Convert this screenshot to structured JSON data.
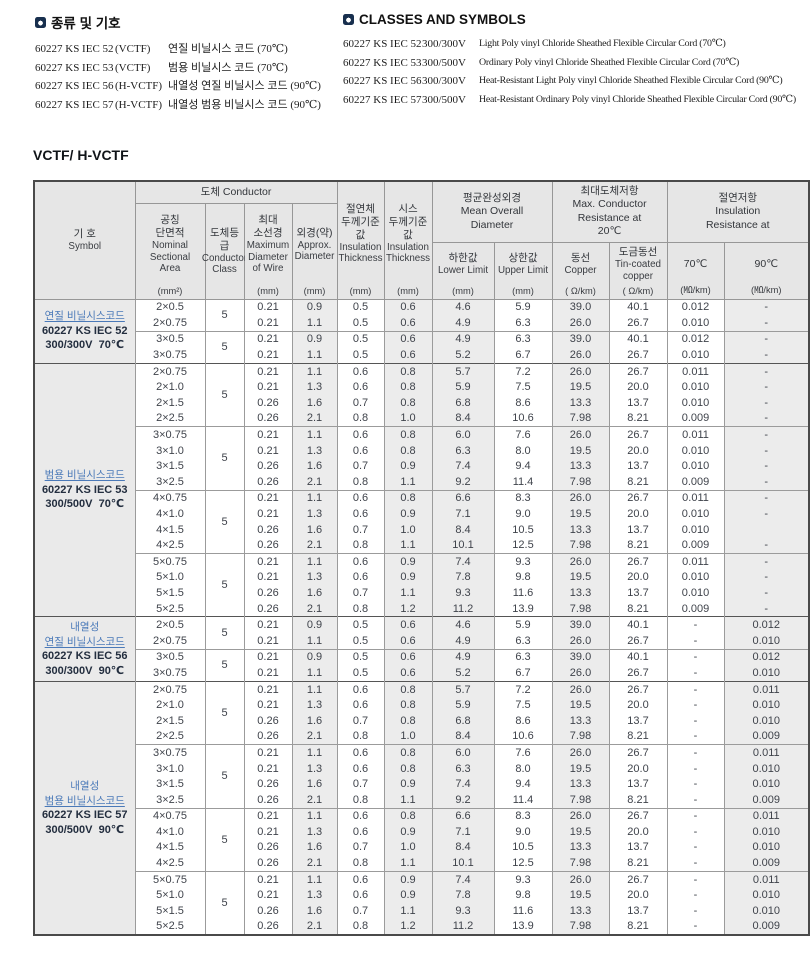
{
  "page": {
    "left_section": {
      "title": "종류 및 기호",
      "items": [
        {
          "code": "60227 KS IEC 52",
          "type": "(VCTF)",
          "desc": "연질 비닐시스 코드 (70℃)"
        },
        {
          "code": "60227 KS IEC 53",
          "type": "(VCTF)",
          "desc": "범용 비닐시스 코드 (70℃)"
        },
        {
          "code": "60227 KS IEC 56",
          "type": "(H-VCTF)",
          "desc": "내열성 연질 비닐시스 코드 (90℃)"
        },
        {
          "code": "60227 KS IEC 57",
          "type": "(H-VCTF)",
          "desc": "내열성 범용 비닐시스 코드 (90℃)"
        }
      ]
    },
    "right_section": {
      "title": "CLASSES AND SYMBOLS",
      "items": [
        {
          "code": "60227 KS IEC 52",
          "voltage": "300/300V",
          "desc": "Light Poly vinyl Chloride Sheathed Flexible Circular Cord (70℃)"
        },
        {
          "code": "60227 KS IEC 53",
          "voltage": "300/500V",
          "desc": "Ordinary Poly vinyl Chloride Sheathed Flexible Circular Cord (70℃)"
        },
        {
          "code": "60227 KS IEC 56",
          "voltage": "300/300V",
          "desc": "Heat-Resistant Light Poly vinyl Chloride Sheathed Flexible Circular Cord (90℃)"
        },
        {
          "code": "60227 KS IEC 57",
          "voltage": "300/500V",
          "desc": "Heat-Resistant Ordinary Poly vinyl Chloride Sheathed Flexible Circular Cord (90℃)"
        }
      ]
    },
    "table_title": "VCTF/ H-VCTF",
    "colors": {
      "accent_blue": "#4a79b8",
      "header_bg": "#e6e6e6",
      "shade_bg": "#ececec"
    },
    "table": {
      "header": {
        "symbol": {
          "kr": "기  호",
          "en": "Symbol"
        },
        "conductor_group": "도체  Conductor",
        "nominal": {
          "kr": "공칭\n단면적",
          "en": "Nominal\nSectional\nArea",
          "unit": "(mm²)"
        },
        "cls": {
          "kr": "도체등급",
          "en": "Conductor\nClass"
        },
        "max_wire": {
          "kr": "최대\n소선경",
          "en": "Maximum\nDiameter\nof Wire",
          "unit": "(mm)"
        },
        "approx_dia": {
          "kr": "외경(약)",
          "en": "Approx.\nDiameter",
          "unit": "(mm)"
        },
        "insulation": {
          "kr": "절연체\n두께기준값",
          "en": "Insulation\nThickness",
          "unit": "(mm)"
        },
        "sheath": {
          "kr": "시스\n두께기준값",
          "en": "Insulation\nThickness",
          "unit": "(mm)"
        },
        "mean_overall_group": "평균완성외경\nMean Overall\nDiameter",
        "lower": {
          "kr": "하한값",
          "en": "Lower Limit",
          "unit": "(mm)"
        },
        "upper": {
          "kr": "상한값",
          "en": "Upper Limit",
          "unit": "(mm)"
        },
        "resistance_group": "최대도체저항\nMax. Conductor\nResistance at\n20℃",
        "copper": {
          "kr": "동선",
          "en": "Copper",
          "unit": "( Ω/km)"
        },
        "tin": {
          "kr": "도금동선",
          "en": "Tin-coated\ncopper",
          "unit": "( Ω/km)"
        },
        "ins_res_group": "절연저항\nInsulation\nResistance at",
        "t70": {
          "kr": "70℃",
          "unit": "(㏁/km)"
        },
        "t90": {
          "kr": "90℃",
          "unit": "(㏁/km)"
        }
      },
      "groups": [
        {
          "label": [
            {
              "text": "연질 비닐시스코드",
              "style": "blue-u"
            },
            {
              "text": "60227 KS IEC 52",
              "style": "bold"
            },
            {
              "text": "300/300V  70℃",
              "style": "bold"
            }
          ],
          "subgroups": [
            {
              "cls": "5",
              "rows": [
                [
                  "2×0.5",
                  "0.21",
                  "0.9",
                  "0.5",
                  "0.6",
                  "4.6",
                  "5.9",
                  "39.0",
                  "40.1",
                  "0.012",
                  "-"
                ],
                [
                  "2×0.75",
                  "0.21",
                  "1.1",
                  "0.5",
                  "0.6",
                  "4.9",
                  "6.3",
                  "26.0",
                  "26.7",
                  "0.010",
                  "-"
                ]
              ]
            },
            {
              "cls": "5",
              "rows": [
                [
                  "3×0.5",
                  "0.21",
                  "0.9",
                  "0.5",
                  "0.6",
                  "4.9",
                  "6.3",
                  "39.0",
                  "40.1",
                  "0.012",
                  "-"
                ],
                [
                  "3×0.75",
                  "0.21",
                  "1.1",
                  "0.5",
                  "0.6",
                  "5.2",
                  "6.7",
                  "26.0",
                  "26.7",
                  "0.010",
                  "-"
                ]
              ]
            }
          ]
        },
        {
          "label": [
            {
              "text": "범용 비닐시스코드",
              "style": "blue-u"
            },
            {
              "text": "60227 KS IEC 53",
              "style": "bold"
            },
            {
              "text": "300/500V  70℃",
              "style": "bold"
            }
          ],
          "subgroups": [
            {
              "cls": "5",
              "rows": [
                [
                  "2×0.75",
                  "0.21",
                  "1.1",
                  "0.6",
                  "0.8",
                  "5.7",
                  "7.2",
                  "26.0",
                  "26.7",
                  "0.011",
                  "-"
                ],
                [
                  "2×1.0",
                  "0.21",
                  "1.3",
                  "0.6",
                  "0.8",
                  "5.9",
                  "7.5",
                  "19.5",
                  "20.0",
                  "0.010",
                  "-"
                ],
                [
                  "2×1.5",
                  "0.26",
                  "1.6",
                  "0.7",
                  "0.8",
                  "6.8",
                  "8.6",
                  "13.3",
                  "13.7",
                  "0.010",
                  "-"
                ],
                [
                  "2×2.5",
                  "0.26",
                  "2.1",
                  "0.8",
                  "1.0",
                  "8.4",
                  "10.6",
                  "7.98",
                  "8.21",
                  "0.009",
                  "-"
                ]
              ]
            },
            {
              "cls": "5",
              "rows": [
                [
                  "3×0.75",
                  "0.21",
                  "1.1",
                  "0.6",
                  "0.8",
                  "6.0",
                  "7.6",
                  "26.0",
                  "26.7",
                  "0.011",
                  "-"
                ],
                [
                  "3×1.0",
                  "0.21",
                  "1.3",
                  "0.6",
                  "0.8",
                  "6.3",
                  "8.0",
                  "19.5",
                  "20.0",
                  "0.010",
                  "-"
                ],
                [
                  "3×1.5",
                  "0.26",
                  "1.6",
                  "0.7",
                  "0.9",
                  "7.4",
                  "9.4",
                  "13.3",
                  "13.7",
                  "0.010",
                  "-"
                ],
                [
                  "3×2.5",
                  "0.26",
                  "2.1",
                  "0.8",
                  "1.1",
                  "9.2",
                  "11.4",
                  "7.98",
                  "8.21",
                  "0.009",
                  "-"
                ]
              ]
            },
            {
              "cls": "5",
              "rows": [
                [
                  "4×0.75",
                  "0.21",
                  "1.1",
                  "0.6",
                  "0.8",
                  "6.6",
                  "8.3",
                  "26.0",
                  "26.7",
                  "0.011",
                  "-"
                ],
                [
                  "4×1.0",
                  "0.21",
                  "1.3",
                  "0.6",
                  "0.9",
                  "7.1",
                  "9.0",
                  "19.5",
                  "20.0",
                  "0.010",
                  "-"
                ],
                [
                  "4×1.5",
                  "0.26",
                  "1.6",
                  "0.7",
                  "1.0",
                  "8.4",
                  "10.5",
                  "13.3",
                  "13.7",
                  "0.010",
                  ""
                ],
                [
                  "4×2.5",
                  "0.26",
                  "2.1",
                  "0.8",
                  "1.1",
                  "10.1",
                  "12.5",
                  "7.98",
                  "8.21",
                  "0.009",
                  "-"
                ]
              ]
            },
            {
              "cls": "5",
              "rows": [
                [
                  "5×0.75",
                  "0.21",
                  "1.1",
                  "0.6",
                  "0.9",
                  "7.4",
                  "9.3",
                  "26.0",
                  "26.7",
                  "0.011",
                  "-"
                ],
                [
                  "5×1.0",
                  "0.21",
                  "1.3",
                  "0.6",
                  "0.9",
                  "7.8",
                  "9.8",
                  "19.5",
                  "20.0",
                  "0.010",
                  "-"
                ],
                [
                  "5×1.5",
                  "0.26",
                  "1.6",
                  "0.7",
                  "1.1",
                  "9.3",
                  "11.6",
                  "13.3",
                  "13.7",
                  "0.010",
                  "-"
                ],
                [
                  "5×2.5",
                  "0.26",
                  "2.1",
                  "0.8",
                  "1.2",
                  "11.2",
                  "13.9",
                  "7.98",
                  "8.21",
                  "0.009",
                  "-"
                ]
              ]
            }
          ]
        },
        {
          "label": [
            {
              "text": "내열성",
              "style": "blue"
            },
            {
              "text": "연질 비닐시스코드",
              "style": "blue-u"
            },
            {
              "text": "60227 KS IEC 56",
              "style": "bold"
            },
            {
              "text": "300/300V  90℃",
              "style": "bold"
            }
          ],
          "subgroups": [
            {
              "cls": "5",
              "rows": [
                [
                  "2×0.5",
                  "0.21",
                  "0.9",
                  "0.5",
                  "0.6",
                  "4.6",
                  "5.9",
                  "39.0",
                  "40.1",
                  "-",
                  "0.012"
                ],
                [
                  "2×0.75",
                  "0.21",
                  "1.1",
                  "0.5",
                  "0.6",
                  "4.9",
                  "6.3",
                  "26.0",
                  "26.7",
                  "-",
                  "0.010"
                ]
              ]
            },
            {
              "cls": "5",
              "rows": [
                [
                  "3×0.5",
                  "0.21",
                  "0.9",
                  "0.5",
                  "0.6",
                  "4.9",
                  "6.3",
                  "39.0",
                  "40.1",
                  "-",
                  "0.012"
                ],
                [
                  "3×0.75",
                  "0.21",
                  "1.1",
                  "0.5",
                  "0.6",
                  "5.2",
                  "6.7",
                  "26.0",
                  "26.7",
                  "-",
                  "0.010"
                ]
              ]
            }
          ]
        },
        {
          "label": [
            {
              "text": "내열성",
              "style": "blue"
            },
            {
              "text": "범용 비닐시스코드",
              "style": "blue-u"
            },
            {
              "text": "60227 KS IEC 57",
              "style": "bold"
            },
            {
              "text": "300/500V  90℃",
              "style": "bold"
            }
          ],
          "subgroups": [
            {
              "cls": "5",
              "rows": [
                [
                  "2×0.75",
                  "0.21",
                  "1.1",
                  "0.6",
                  "0.8",
                  "5.7",
                  "7.2",
                  "26.0",
                  "26.7",
                  "-",
                  "0.011"
                ],
                [
                  "2×1.0",
                  "0.21",
                  "1.3",
                  "0.6",
                  "0.8",
                  "5.9",
                  "7.5",
                  "19.5",
                  "20.0",
                  "-",
                  "0.010"
                ],
                [
                  "2×1.5",
                  "0.26",
                  "1.6",
                  "0.7",
                  "0.8",
                  "6.8",
                  "8.6",
                  "13.3",
                  "13.7",
                  "-",
                  "0.010"
                ],
                [
                  "2×2.5",
                  "0.26",
                  "2.1",
                  "0.8",
                  "1.0",
                  "8.4",
                  "10.6",
                  "7.98",
                  "8.21",
                  "-",
                  "0.009"
                ]
              ]
            },
            {
              "cls": "5",
              "rows": [
                [
                  "3×0.75",
                  "0.21",
                  "1.1",
                  "0.6",
                  "0.8",
                  "6.0",
                  "7.6",
                  "26.0",
                  "26.7",
                  "-",
                  "0.011"
                ],
                [
                  "3×1.0",
                  "0.21",
                  "1.3",
                  "0.6",
                  "0.8",
                  "6.3",
                  "8.0",
                  "19.5",
                  "20.0",
                  "-",
                  "0.010"
                ],
                [
                  "3×1.5",
                  "0.26",
                  "1.6",
                  "0.7",
                  "0.9",
                  "7.4",
                  "9.4",
                  "13.3",
                  "13.7",
                  "-",
                  "0.010"
                ],
                [
                  "3×2.5",
                  "0.26",
                  "2.1",
                  "0.8",
                  "1.1",
                  "9.2",
                  "11.4",
                  "7.98",
                  "8.21",
                  "-",
                  "0.009"
                ]
              ]
            },
            {
              "cls": "5",
              "rows": [
                [
                  "4×0.75",
                  "0.21",
                  "1.1",
                  "0.6",
                  "0.8",
                  "6.6",
                  "8.3",
                  "26.0",
                  "26.7",
                  "-",
                  "0.011"
                ],
                [
                  "4×1.0",
                  "0.21",
                  "1.3",
                  "0.6",
                  "0.9",
                  "7.1",
                  "9.0",
                  "19.5",
                  "20.0",
                  "-",
                  "0.010"
                ],
                [
                  "4×1.5",
                  "0.26",
                  "1.6",
                  "0.7",
                  "1.0",
                  "8.4",
                  "10.5",
                  "13.3",
                  "13.7",
                  "-",
                  "0.010"
                ],
                [
                  "4×2.5",
                  "0.26",
                  "2.1",
                  "0.8",
                  "1.1",
                  "10.1",
                  "12.5",
                  "7.98",
                  "8.21",
                  "-",
                  "0.009"
                ]
              ]
            },
            {
              "cls": "5",
              "rows": [
                [
                  "5×0.75",
                  "0.21",
                  "1.1",
                  "0.6",
                  "0.9",
                  "7.4",
                  "9.3",
                  "26.0",
                  "26.7",
                  "-",
                  "0.011"
                ],
                [
                  "5×1.0",
                  "0.21",
                  "1.3",
                  "0.6",
                  "0.9",
                  "7.8",
                  "9.8",
                  "19.5",
                  "20.0",
                  "-",
                  "0.010"
                ],
                [
                  "5×1.5",
                  "0.26",
                  "1.6",
                  "0.7",
                  "1.1",
                  "9.3",
                  "11.6",
                  "13.3",
                  "13.7",
                  "-",
                  "0.010"
                ],
                [
                  "5×2.5",
                  "0.26",
                  "2.1",
                  "0.8",
                  "1.2",
                  "11.2",
                  "13.9",
                  "7.98",
                  "8.21",
                  "-",
                  "0.009"
                ]
              ]
            }
          ]
        }
      ]
    }
  }
}
